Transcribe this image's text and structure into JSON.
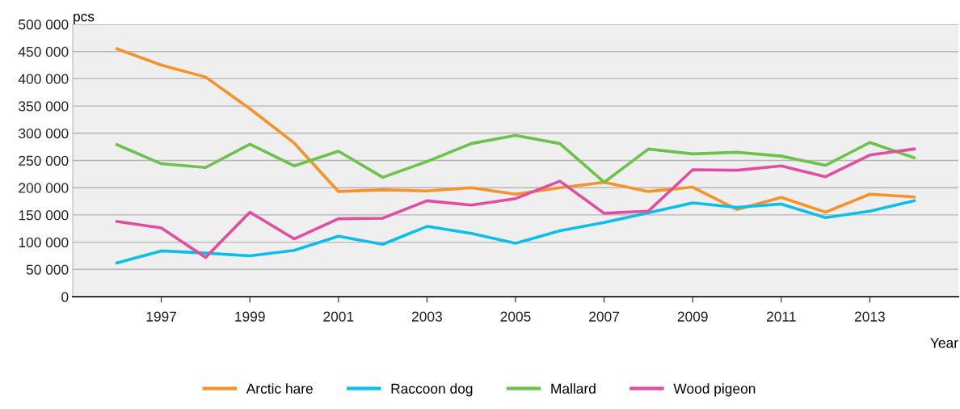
{
  "chart_data": {
    "type": "line",
    "xlabel": "Year",
    "ylabel": "pcs",
    "x": [
      1996,
      1997,
      1998,
      1999,
      2000,
      2001,
      2002,
      2003,
      2004,
      2005,
      2006,
      2007,
      2008,
      2009,
      2010,
      2011,
      2012,
      2013,
      2014
    ],
    "xlim": [
      1995,
      2015
    ],
    "xticks": [
      1997,
      1999,
      2001,
      2003,
      2005,
      2007,
      2009,
      2011,
      2013
    ],
    "ylim": [
      0,
      500000
    ],
    "yticks": [
      {
        "value": 0,
        "label": "0"
      },
      {
        "value": 50000,
        "label": "50 000"
      },
      {
        "value": 100000,
        "label": "100 000"
      },
      {
        "value": 150000,
        "label": "150 000"
      },
      {
        "value": 200000,
        "label": "200 000"
      },
      {
        "value": 250000,
        "label": "250 000"
      },
      {
        "value": 300000,
        "label": "300 000"
      },
      {
        "value": 350000,
        "label": "350 000"
      },
      {
        "value": 400000,
        "label": "400 000"
      },
      {
        "value": 450000,
        "label": "450 000"
      },
      {
        "value": 500000,
        "label": "500 000"
      }
    ],
    "grid": "y",
    "legend": "bottom",
    "marker": "none",
    "line_style": "solid",
    "series": [
      {
        "name": "Arctic hare",
        "color": "#f7922b",
        "values": [
          455000,
          425000,
          403000,
          345000,
          282000,
          193000,
          196000,
          194000,
          200000,
          188000,
          200000,
          210000,
          193000,
          201000,
          160000,
          182000,
          155000,
          188000,
          183000
        ]
      },
      {
        "name": "Raccoon dog",
        "color": "#0ebeea",
        "values": [
          62000,
          84000,
          80000,
          75000,
          85000,
          111000,
          96000,
          129000,
          116000,
          98000,
          121000,
          136000,
          154000,
          172000,
          164000,
          170000,
          145000,
          157000,
          176000
        ]
      },
      {
        "name": "Mallard",
        "color": "#6cc24a",
        "values": [
          279000,
          244000,
          237000,
          280000,
          240000,
          267000,
          219000,
          248000,
          281000,
          296000,
          281000,
          210000,
          271000,
          262000,
          265000,
          258000,
          241000,
          283000,
          255000
        ]
      },
      {
        "name": "Wood pigeon",
        "color": "#e04ea0",
        "values": [
          138000,
          126000,
          72000,
          155000,
          106000,
          143000,
          144000,
          176000,
          168000,
          180000,
          212000,
          153000,
          157000,
          233000,
          232000,
          240000,
          220000,
          260000,
          271000
        ]
      }
    ]
  }
}
